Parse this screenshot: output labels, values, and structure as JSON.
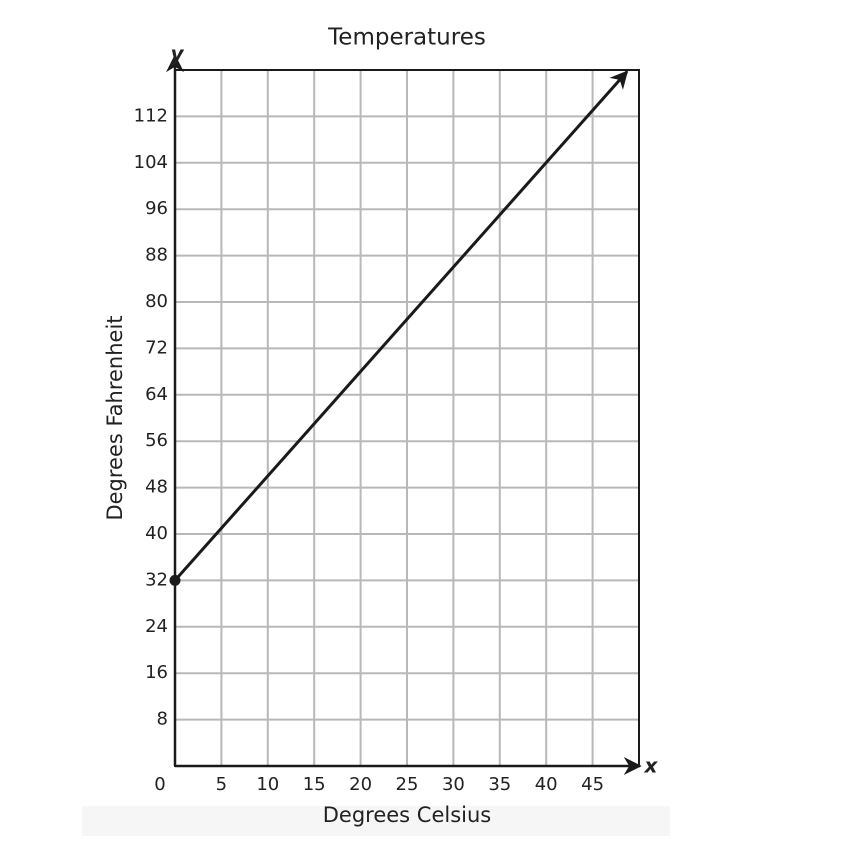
{
  "chart_data": {
    "type": "line",
    "title": "Temperatures",
    "xlabel": "Degrees Celsius",
    "ylabel": "Degrees Fahrenheit",
    "x_axis_letter": "x",
    "y_axis_letter": "y",
    "x": [
      0,
      48.7
    ],
    "values": [
      32,
      119.7
    ],
    "color": "#1a1a1a",
    "xlim": [
      0,
      50
    ],
    "ylim": [
      0,
      120
    ],
    "xticks": [
      0,
      5,
      10,
      15,
      20,
      25,
      30,
      35,
      40,
      45
    ],
    "yticks": [
      8,
      16,
      24,
      32,
      40,
      48,
      56,
      64,
      72,
      80,
      88,
      96,
      104,
      112
    ],
    "grid": true,
    "start_marker": true,
    "end_arrow": true
  }
}
